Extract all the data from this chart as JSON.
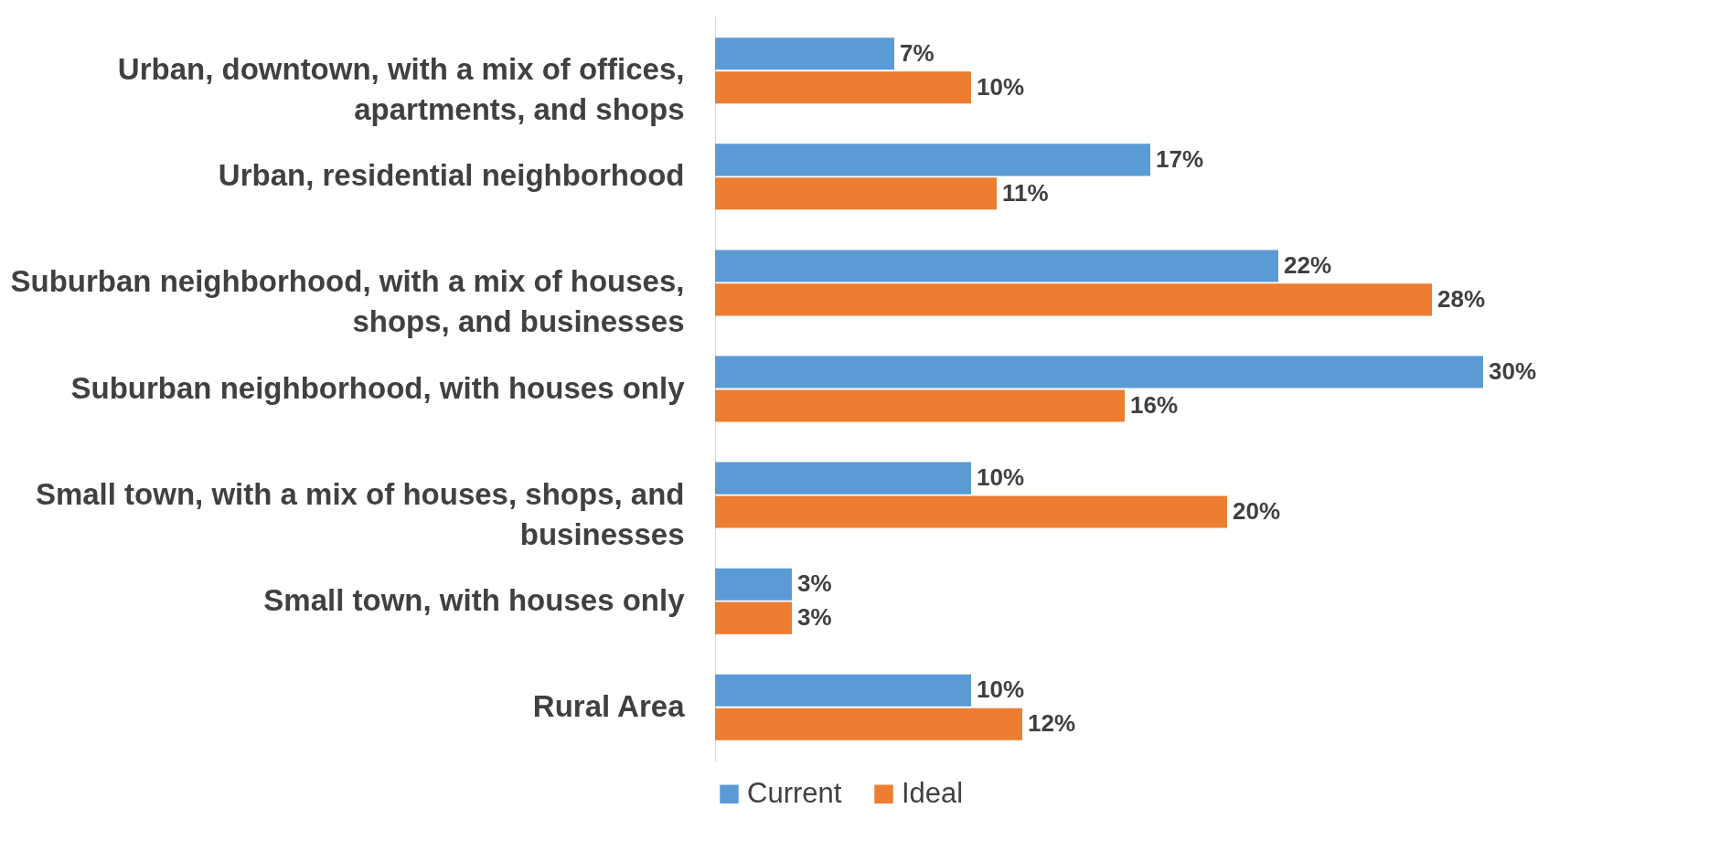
{
  "chart_data": {
    "type": "bar",
    "orientation": "horizontal",
    "categories": [
      "Urban, downtown, with a mix of offices, apartments, and shops",
      "Urban, residential neighborhood",
      "Suburban neighborhood, with a mix of houses, shops, and businesses",
      "Suburban neighborhood, with houses only",
      "Small town, with a mix of houses, shops, and businesses",
      "Small town, with houses only",
      "Rural Area"
    ],
    "series": [
      {
        "name": "Current",
        "color": "#5b9bd5",
        "values": [
          7,
          17,
          22,
          30,
          10,
          3,
          10
        ],
        "value_labels": [
          "7%",
          "17%",
          "22%",
          "30%",
          "10%",
          "3%",
          "10%"
        ]
      },
      {
        "name": "Ideal",
        "color": "#ed7d31",
        "values": [
          10,
          11,
          28,
          16,
          20,
          3,
          12
        ],
        "value_labels": [
          "10%",
          "11%",
          "28%",
          "16%",
          "20%",
          "3%",
          "12%"
        ]
      }
    ],
    "legend": "bottom",
    "grid": false
  }
}
